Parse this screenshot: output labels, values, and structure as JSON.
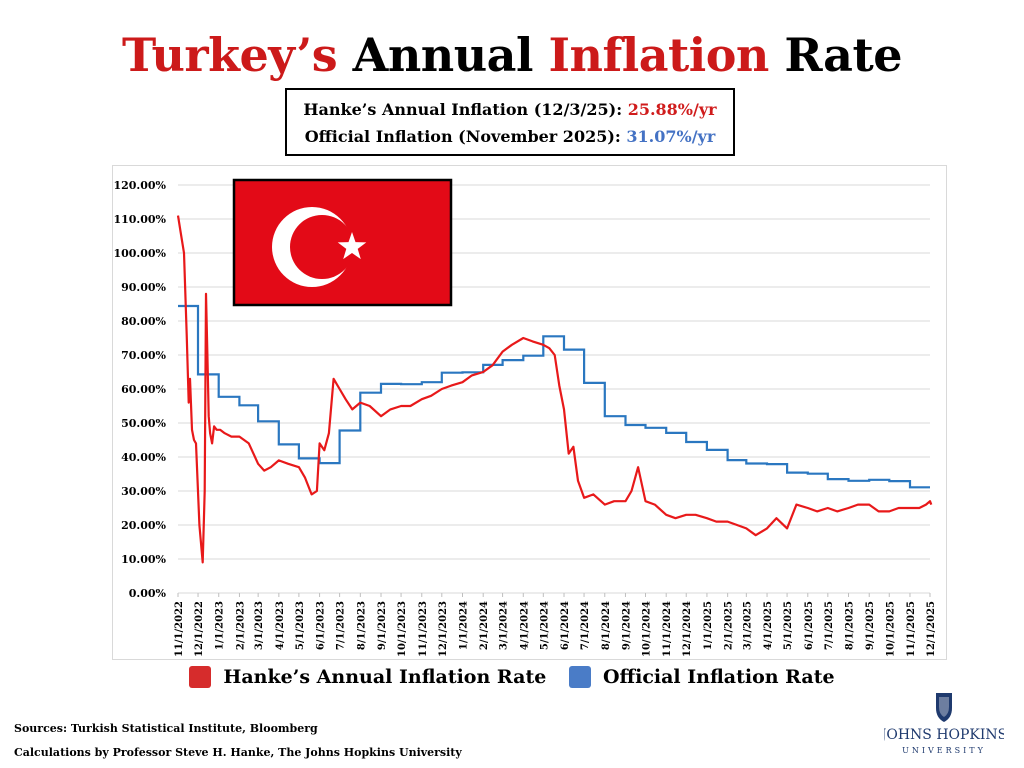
{
  "title": {
    "part1": "Turkey’s",
    "part2": "Annual",
    "part3": "Inflation",
    "part4": "Rate"
  },
  "infobox": {
    "line1_label": "Hanke’s Annual Inflation (12/3/25):",
    "line1_value": "25.88%/yr",
    "line2_label": "Official Inflation (November 2025):",
    "line2_value": "31.07%/yr"
  },
  "legend": {
    "hanke": "Hanke’s Annual Inflation Rate",
    "official": "Official Inflation Rate"
  },
  "sources": {
    "line1": "Sources: Turkish Statistical Institute, Bloomberg",
    "line2": "Calculations by Professor Steve H. Hanke, The Johns Hopkins University"
  },
  "logo": {
    "name": "JOHNS HOPKINS",
    "subtitle": "UNIVERSITY"
  },
  "colors": {
    "hanke": "#e8191a",
    "official": "#2a77c0",
    "flag": "#e30a17"
  },
  "chart_data": {
    "type": "line",
    "ylim": [
      0,
      120
    ],
    "y_ticks": [
      "0.00%",
      "10.00%",
      "20.00%",
      "30.00%",
      "40.00%",
      "50.00%",
      "60.00%",
      "70.00%",
      "80.00%",
      "90.00%",
      "100.00%",
      "110.00%",
      "120.00%"
    ],
    "x_ticks": [
      "11/1/2022",
      "12/1/2022",
      "1/1/2023",
      "2/1/2023",
      "3/1/2023",
      "4/1/2023",
      "5/1/2023",
      "6/1/2023",
      "7/1/2023",
      "8/1/2023",
      "9/1/2023",
      "10/1/2023",
      "11/1/2023",
      "12/1/2023",
      "1/1/2024",
      "2/1/2024",
      "3/1/2024",
      "4/1/2024",
      "5/1/2024",
      "6/1/2024",
      "7/1/2024",
      "8/1/2024",
      "9/1/2024",
      "10/1/2024",
      "11/1/2024",
      "12/1/2024",
      "1/1/2025",
      "2/1/2025",
      "3/1/2025",
      "4/1/2025",
      "5/1/2025",
      "6/1/2025",
      "7/1/2025",
      "8/1/2025",
      "9/1/2025",
      "10/1/2025",
      "11/1/2025",
      "12/1/2025"
    ],
    "grid": true,
    "legend_position": "bottom",
    "series": [
      {
        "name": "Official Inflation Rate",
        "x": [
          "11/1/2022",
          "12/1/2022",
          "1/1/2023",
          "2/1/2023",
          "3/1/2023",
          "4/1/2023",
          "5/1/2023",
          "6/1/2023",
          "7/1/2023",
          "8/1/2023",
          "9/1/2023",
          "10/1/2023",
          "11/1/2023",
          "12/1/2023",
          "1/1/2024",
          "2/1/2024",
          "3/1/2024",
          "4/1/2024",
          "5/1/2024",
          "6/1/2024",
          "7/1/2024",
          "8/1/2024",
          "9/1/2024",
          "10/1/2024",
          "11/1/2024",
          "12/1/2024",
          "1/1/2025",
          "2/1/2025",
          "3/1/2025",
          "4/1/2025",
          "5/1/2025",
          "6/1/2025",
          "7/1/2025",
          "8/1/2025",
          "9/1/2025",
          "10/1/2025",
          "11/1/2025",
          "12/1/2025"
        ],
        "y": [
          84.4,
          64.3,
          57.7,
          55.2,
          50.5,
          43.7,
          39.6,
          38.2,
          47.8,
          58.9,
          61.5,
          61.4,
          62.0,
          64.8,
          64.9,
          67.1,
          68.5,
          69.8,
          75.5,
          71.6,
          61.8,
          52.0,
          49.4,
          48.6,
          47.1,
          44.4,
          42.1,
          39.1,
          38.1,
          37.9,
          35.4,
          35.1,
          33.5,
          33.0,
          33.3,
          32.9,
          31.1,
          31.1
        ]
      },
      {
        "name": "Hanke’s Annual Inflation Rate",
        "x": [
          "11/1/2022",
          "11/5/2022",
          "11/10/2022",
          "11/14/2022",
          "11/17/2022",
          "11/19/2022",
          "11/22/2022",
          "11/25/2022",
          "11/28/2022",
          "12/3/2022",
          "12/8/2022",
          "12/11/2022",
          "12/13/2022",
          "12/15/2022",
          "12/17/2022",
          "12/19/2022",
          "12/22/2022",
          "12/25/2022",
          "12/29/2022",
          "1/3/2023",
          "1/10/2023",
          "1/20/2023",
          "2/1/2023",
          "2/15/2023",
          "3/1/2023",
          "3/10/2023",
          "3/20/2023",
          "4/1/2023",
          "4/15/2023",
          "5/1/2023",
          "5/10/2023",
          "5/20/2023",
          "5/28/2023",
          "6/1/2023",
          "6/8/2023",
          "6/15/2023",
          "6/22/2023",
          "7/1/2023",
          "7/10/2023",
          "7/20/2023",
          "8/1/2023",
          "8/15/2023",
          "9/1/2023",
          "9/15/2023",
          "10/1/2023",
          "10/15/2023",
          "11/1/2023",
          "11/15/2023",
          "12/1/2023",
          "12/15/2023",
          "1/1/2024",
          "1/15/2024",
          "2/1/2024",
          "2/15/2024",
          "3/1/2024",
          "3/15/2024",
          "4/1/2024",
          "4/15/2024",
          "5/1/2024",
          "5/10/2024",
          "5/18/2024",
          "5/25/2024",
          "6/1/2024",
          "6/8/2024",
          "6/15/2024",
          "6/22/2024",
          "7/1/2024",
          "7/15/2024",
          "8/1/2024",
          "8/15/2024",
          "9/1/2024",
          "9/10/2024",
          "9/20/2024",
          "10/1/2024",
          "10/15/2024",
          "11/1/2024",
          "11/15/2024",
          "12/1/2024",
          "12/15/2024",
          "1/1/2025",
          "1/15/2025",
          "2/1/2025",
          "2/15/2025",
          "3/1/2025",
          "3/15/2025",
          "4/1/2025",
          "4/15/2025",
          "5/1/2025",
          "5/15/2025",
          "6/1/2025",
          "6/15/2025",
          "7/1/2025",
          "7/15/2025",
          "8/1/2025",
          "8/15/2025",
          "9/1/2025",
          "9/15/2025",
          "10/1/2025",
          "10/15/2025",
          "11/1/2025",
          "11/15/2025",
          "11/25/2025",
          "12/1/2025",
          "12/3/2025"
        ],
        "y": [
          111,
          106,
          100,
          76,
          56,
          63,
          48,
          45,
          44,
          20,
          9,
          30,
          88,
          70,
          52,
          47,
          44,
          49,
          48,
          48,
          47,
          46,
          46,
          44,
          38,
          36,
          37,
          39,
          38,
          37,
          34,
          29,
          30,
          44,
          42,
          47,
          63,
          60,
          57,
          54,
          56,
          55,
          52,
          54,
          55,
          55,
          57,
          58,
          60,
          61,
          62,
          64,
          65,
          67,
          71,
          73,
          75,
          74,
          73,
          72,
          70,
          61,
          54,
          41,
          43,
          33,
          28,
          29,
          26,
          27,
          27,
          30,
          37,
          27,
          26,
          23,
          22,
          23,
          23,
          22,
          21,
          21,
          20,
          19,
          17,
          19,
          22,
          19,
          26,
          25,
          24,
          25,
          24,
          25,
          26,
          26,
          24,
          24,
          25,
          25,
          25,
          26,
          27,
          26
        ]
      }
    ]
  }
}
